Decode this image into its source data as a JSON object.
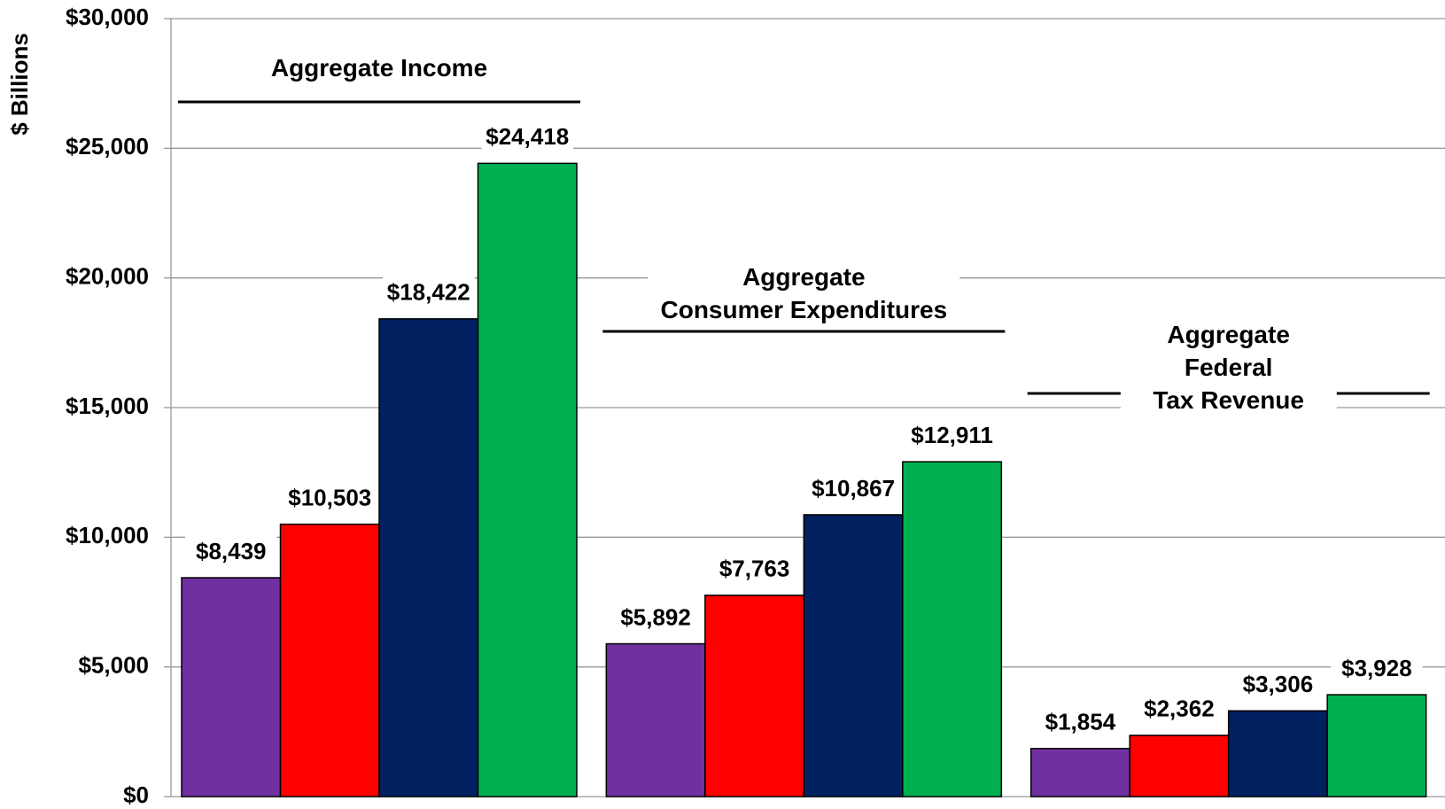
{
  "chart_data": {
    "type": "bar",
    "y_label": "$ Billions",
    "categories": [
      "Aggregate Income",
      "Aggregate\nConsumer Expenditures",
      "Aggregate Federal\nTax Revenue"
    ],
    "series": [
      {
        "color": "#7030a0",
        "values": [
          8439,
          5892,
          1854
        ],
        "value_labels": [
          "$8,439",
          "$5,892",
          "$1,854"
        ]
      },
      {
        "color": "#ff0000",
        "values": [
          10503,
          7763,
          2362
        ],
        "value_labels": [
          "$10,503",
          "$7,763",
          "$2,362"
        ]
      },
      {
        "color": "#002060",
        "values": [
          18422,
          10867,
          3306
        ],
        "value_labels": [
          "$18,422",
          "$10,867",
          "$3,306"
        ]
      },
      {
        "color": "#00b050",
        "values": [
          24418,
          12911,
          3928
        ],
        "value_labels": [
          "$24,418",
          "$12,911",
          "$3,928"
        ]
      }
    ],
    "ylim": [
      0,
      30000
    ],
    "yticks": [
      {
        "value": 0,
        "label": "$0"
      },
      {
        "value": 5000,
        "label": "$5,000"
      },
      {
        "value": 10000,
        "label": "$10,000"
      },
      {
        "value": 15000,
        "label": "$15,000"
      },
      {
        "value": 20000,
        "label": "$20,000"
      },
      {
        "value": 25000,
        "label": "$25,000"
      },
      {
        "value": 30000,
        "label": "$30,000"
      }
    ],
    "grid": true
  }
}
